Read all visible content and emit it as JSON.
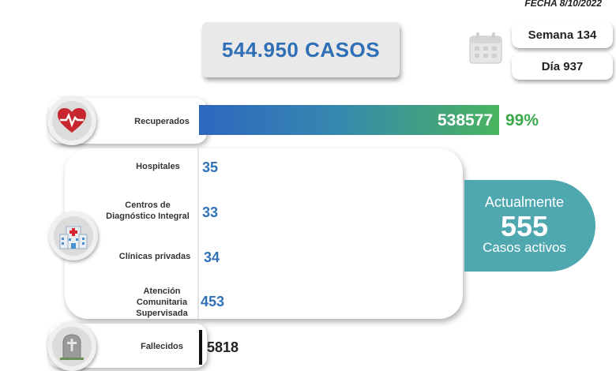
{
  "header": {
    "date": "FECHA 8/10/2022",
    "total_cases": "544.950 CASOS",
    "week": "Semana 134",
    "day": "Día 937"
  },
  "recovered": {
    "label": "Recuperados",
    "value": "538577",
    "percent": "99%",
    "share": 0.99
  },
  "treatment": [
    {
      "label": "Hospitales",
      "value": "35"
    },
    {
      "label": "Centros de Diagnóstico Integral",
      "value": "33"
    },
    {
      "label": "Clínicas privadas",
      "value": "34"
    },
    {
      "label": "Atención Comunitaria Supervisada",
      "value": "453"
    }
  ],
  "active": {
    "title": "Actualmente",
    "value": "555",
    "subtitle": "Casos activos"
  },
  "deceased": {
    "label": "Fallecidos",
    "value": "5818"
  },
  "icons": {
    "calendar": "calendar-icon",
    "heart": "heart-pulse-icon",
    "hospital": "hospital-icon",
    "tombstone": "tombstone-icon"
  },
  "colors": {
    "accent_blue": "#2f72b8",
    "accent_green": "#3aa94a",
    "active_teal": "#4fa7b0"
  }
}
